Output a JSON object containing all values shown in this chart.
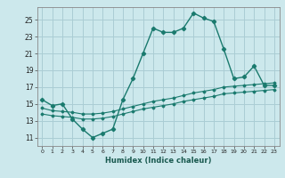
{
  "xlabel": "Humidex (Indice chaleur)",
  "ylabel": "",
  "background_color": "#cce8ec",
  "grid_color": "#aacdd4",
  "line_color": "#1a7a6e",
  "xlim": [
    -0.5,
    23.5
  ],
  "ylim": [
    10.0,
    26.5
  ],
  "yticks": [
    11,
    13,
    15,
    17,
    19,
    21,
    23,
    25
  ],
  "xticks": [
    0,
    1,
    2,
    3,
    4,
    5,
    6,
    7,
    8,
    9,
    10,
    11,
    12,
    13,
    14,
    15,
    16,
    17,
    18,
    19,
    20,
    21,
    22,
    23
  ],
  "series1_x": [
    0,
    1,
    2,
    3,
    4,
    5,
    6,
    7,
    8,
    9,
    10,
    11,
    12,
    13,
    14,
    15,
    16,
    17,
    18,
    19,
    20,
    21,
    22,
    23
  ],
  "series1_y": [
    15.5,
    14.8,
    15.0,
    13.2,
    12.0,
    11.0,
    11.5,
    12.0,
    15.5,
    18.0,
    21.0,
    24.0,
    23.5,
    23.5,
    24.0,
    25.8,
    25.2,
    24.8,
    21.5,
    18.0,
    18.2,
    19.5,
    17.2,
    17.2
  ],
  "series2_x": [
    0,
    1,
    2,
    3,
    4,
    5,
    6,
    7,
    8,
    9,
    10,
    11,
    12,
    13,
    14,
    15,
    16,
    17,
    18,
    19,
    20,
    21,
    22,
    23
  ],
  "series2_y": [
    14.5,
    14.2,
    14.1,
    14.0,
    13.8,
    13.8,
    13.9,
    14.1,
    14.4,
    14.7,
    15.0,
    15.3,
    15.5,
    15.7,
    16.0,
    16.3,
    16.5,
    16.7,
    17.0,
    17.1,
    17.2,
    17.3,
    17.4,
    17.5
  ],
  "series3_x": [
    0,
    1,
    2,
    3,
    4,
    5,
    6,
    7,
    8,
    9,
    10,
    11,
    12,
    13,
    14,
    15,
    16,
    17,
    18,
    19,
    20,
    21,
    22,
    23
  ],
  "series3_y": [
    13.8,
    13.6,
    13.5,
    13.4,
    13.2,
    13.2,
    13.3,
    13.5,
    13.8,
    14.1,
    14.4,
    14.6,
    14.8,
    15.0,
    15.3,
    15.5,
    15.7,
    15.9,
    16.2,
    16.3,
    16.4,
    16.5,
    16.6,
    16.7
  ]
}
